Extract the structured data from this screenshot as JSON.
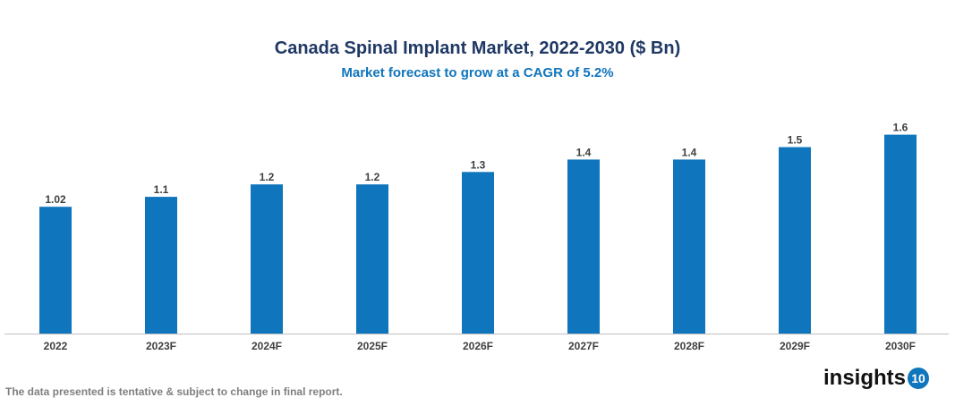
{
  "chart_data": {
    "type": "bar",
    "title": "Canada Spinal Implant Market, 2022-2030 ($ Bn)",
    "subtitle": "Market forecast to grow at a CAGR of 5.2%",
    "categories": [
      "2022",
      "2023F",
      "2024F",
      "2025F",
      "2026F",
      "2027F",
      "2028F",
      "2029F",
      "2030F"
    ],
    "values": [
      1.02,
      1.1,
      1.2,
      1.2,
      1.3,
      1.4,
      1.4,
      1.5,
      1.6
    ],
    "labels": [
      "1.02",
      "1.1",
      "1.2",
      "1.2",
      "1.3",
      "1.4",
      "1.4",
      "1.5",
      "1.6"
    ],
    "xlabel": "",
    "ylabel": "",
    "ylim": [
      0,
      1.7
    ],
    "grid": false,
    "bar_color": "#0f75bc"
  },
  "footer": {
    "note": "The data presented is tentative & subject to change in final report.",
    "logo_text": "insights",
    "logo_badge": "10"
  }
}
